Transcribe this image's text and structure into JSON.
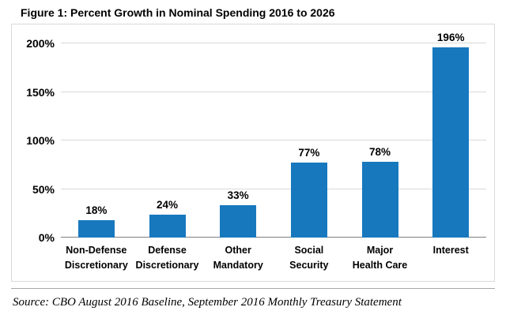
{
  "figure": {
    "title": "Figure 1: Percent Growth in Nominal Spending 2016 to 2026",
    "source": "Source: CBO August 2016 Baseline, September 2016 Monthly Treasury Statement"
  },
  "chart_data": {
    "type": "bar",
    "title": "Figure 1: Percent Growth in Nominal Spending 2016 to 2026",
    "categories": [
      [
        "Non-Defense",
        "Discretionary"
      ],
      [
        "Defense",
        "Discretionary"
      ],
      [
        "Other",
        "Mandatory"
      ],
      [
        "Social",
        "Security"
      ],
      [
        "Major",
        "Health Care"
      ],
      [
        "Interest"
      ]
    ],
    "values": [
      18,
      24,
      33,
      77,
      78,
      196
    ],
    "data_labels": [
      "18%",
      "24%",
      "33%",
      "77%",
      "78%",
      "196%"
    ],
    "yticks": [
      0,
      50,
      100,
      150,
      200
    ],
    "ytick_labels": [
      "0%",
      "50%",
      "100%",
      "150%",
      "200%"
    ],
    "ylim": [
      0,
      200
    ],
    "xlabel": "",
    "ylabel": "",
    "grid": "horizontal",
    "legend": "none",
    "bar_color": "#1878BE",
    "gridline_color": "#d9d9d9"
  }
}
